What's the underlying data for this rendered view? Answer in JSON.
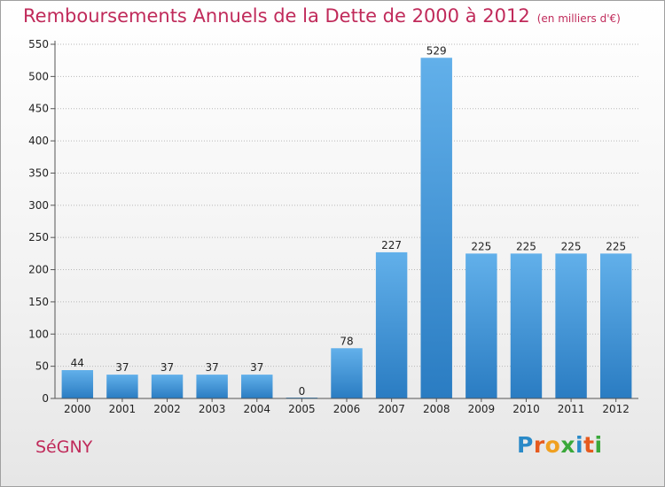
{
  "title": {
    "main": "Remboursements Annuels de la Dette de 2000 à 2012",
    "unit": "(en milliers d'€)"
  },
  "commune": "SéGNY",
  "logo": {
    "letters": [
      "P",
      "r",
      "o",
      "x",
      "i",
      "t",
      "i"
    ],
    "colors": [
      "#2a8ac8",
      "#e65a1e",
      "#f0a020",
      "#3aa83a",
      "#2a8ac8",
      "#e65a1e",
      "#3aa83a"
    ]
  },
  "colors": {
    "bar": "#3a92d8",
    "bar_light": "#62b0ea",
    "bar_dark": "#2a7cc2",
    "grid": "#b8b8b8",
    "axis": "#555555"
  },
  "chart_data": {
    "type": "bar",
    "categories": [
      "2000",
      "2001",
      "2002",
      "2003",
      "2004",
      "2005",
      "2006",
      "2007",
      "2008",
      "2009",
      "2010",
      "2011",
      "2012"
    ],
    "values": [
      44,
      37,
      37,
      37,
      37,
      0,
      78,
      227,
      529,
      225,
      225,
      225,
      225
    ],
    "title": "Remboursements Annuels de la Dette de 2000 à 2012",
    "xlabel": "",
    "ylabel": "",
    "ylim": [
      0,
      550
    ],
    "yticks": [
      0,
      50,
      100,
      150,
      200,
      250,
      300,
      350,
      400,
      450,
      500,
      550
    ],
    "grid": true,
    "data_labels": true
  }
}
